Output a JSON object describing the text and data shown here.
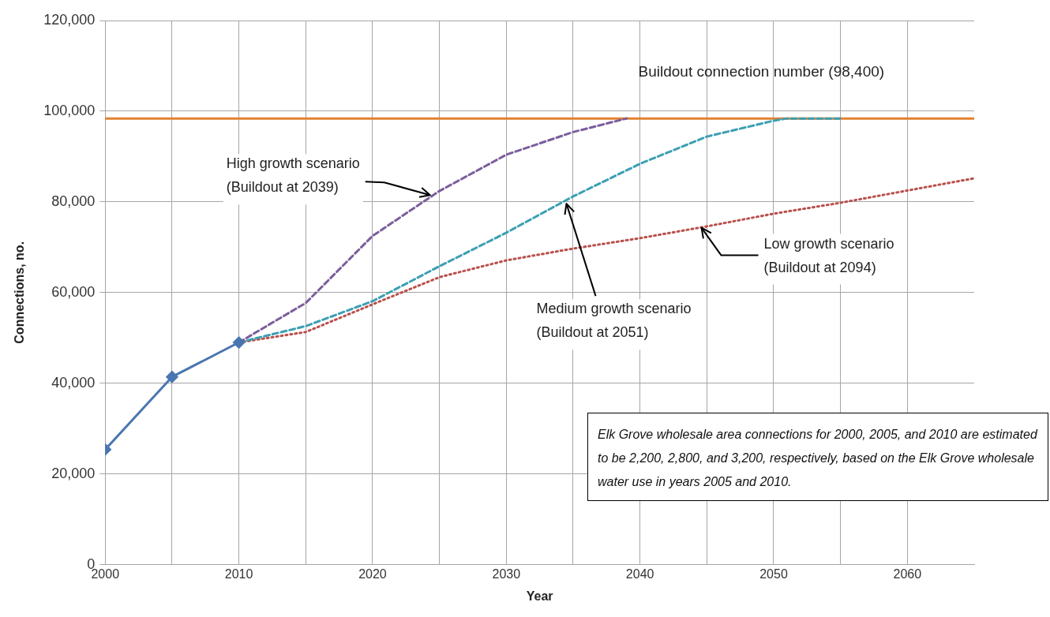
{
  "chart_data": {
    "type": "line",
    "xlabel": "Year",
    "ylabel": "Connections, no.",
    "xlim": [
      2000,
      2065
    ],
    "xticks": [
      2000,
      {
        "value": 2005,
        "label": null
      },
      2010,
      {
        "value": 2015,
        "label": null
      },
      2020,
      {
        "value": 2025,
        "label": null
      },
      2030,
      {
        "value": 2035,
        "label": null
      },
      2040,
      {
        "value": 2045,
        "label": null
      },
      2050,
      {
        "value": 2055,
        "label": null
      },
      2060
    ],
    "ylim": [
      0,
      120000
    ],
    "yticks": [
      0,
      {
        "value": 20000,
        "label": "20,000"
      },
      {
        "value": 40000,
        "label": "40,000"
      },
      {
        "value": 60000,
        "label": "60,000"
      },
      {
        "value": 80000,
        "label": "80,000"
      },
      {
        "value": 100000,
        "label": "100,000"
      },
      {
        "value": 120000,
        "label": "120,000"
      }
    ],
    "grid": true,
    "series": [
      {
        "color": "#4a76b0",
        "marker": "diamond",
        "line_style": "solid",
        "x": [
          2000,
          2005,
          2010
        ],
        "values": [
          25400,
          41400,
          49000
        ]
      },
      {
        "color": "#7b5d9c",
        "marker": "none",
        "line_style": "dashed",
        "x": [
          2010,
          2015,
          2020,
          2025,
          2030,
          2035,
          2039
        ],
        "values": [
          49000,
          57700,
          72500,
          82400,
          90400,
          95400,
          98400
        ]
      },
      {
        "color": "#3c9fb3",
        "marker": "none",
        "line_style": "dashed",
        "x": [
          2010,
          2015,
          2020,
          2025,
          2030,
          2035,
          2040,
          2045,
          2050,
          2051,
          2055
        ],
        "values": [
          49000,
          52600,
          58100,
          65800,
          73200,
          81200,
          88400,
          94400,
          97900,
          98400,
          98400
        ]
      },
      {
        "color": "#b9504c",
        "marker": "none",
        "line_style": "dotted",
        "x": [
          2010,
          2015,
          2020,
          2025,
          2030,
          2035,
          2040,
          2045,
          2050,
          2055,
          2060,
          2065
        ],
        "values": [
          49000,
          51300,
          57400,
          63400,
          67100,
          69700,
          72000,
          74600,
          77400,
          79800,
          82500,
          85200
        ]
      }
    ],
    "ref_lines": [
      {
        "axis": "y",
        "value": 98400,
        "label": "Buildout connection number (98,400)",
        "color": "#e2822f"
      }
    ],
    "annotations": [
      {
        "text": "High growth scenario (Buildout at 2039)",
        "x": 2024.3,
        "y": 81500
      },
      {
        "text": "Medium growth scenario (Buildout at 2051)",
        "x": 2034.5,
        "y": 79600
      },
      {
        "text": "Low growth scenario (Buildout at 2094)",
        "x": 2044.6,
        "y": 74300
      },
      "Elk Grove wholesale area connections for 2000, 2005, and 2010 are estimated to be 2,200, 2,800, and 3,200, respectively, based on the Elk Grove wholesale water use in years 2005 and 2010."
    ]
  }
}
